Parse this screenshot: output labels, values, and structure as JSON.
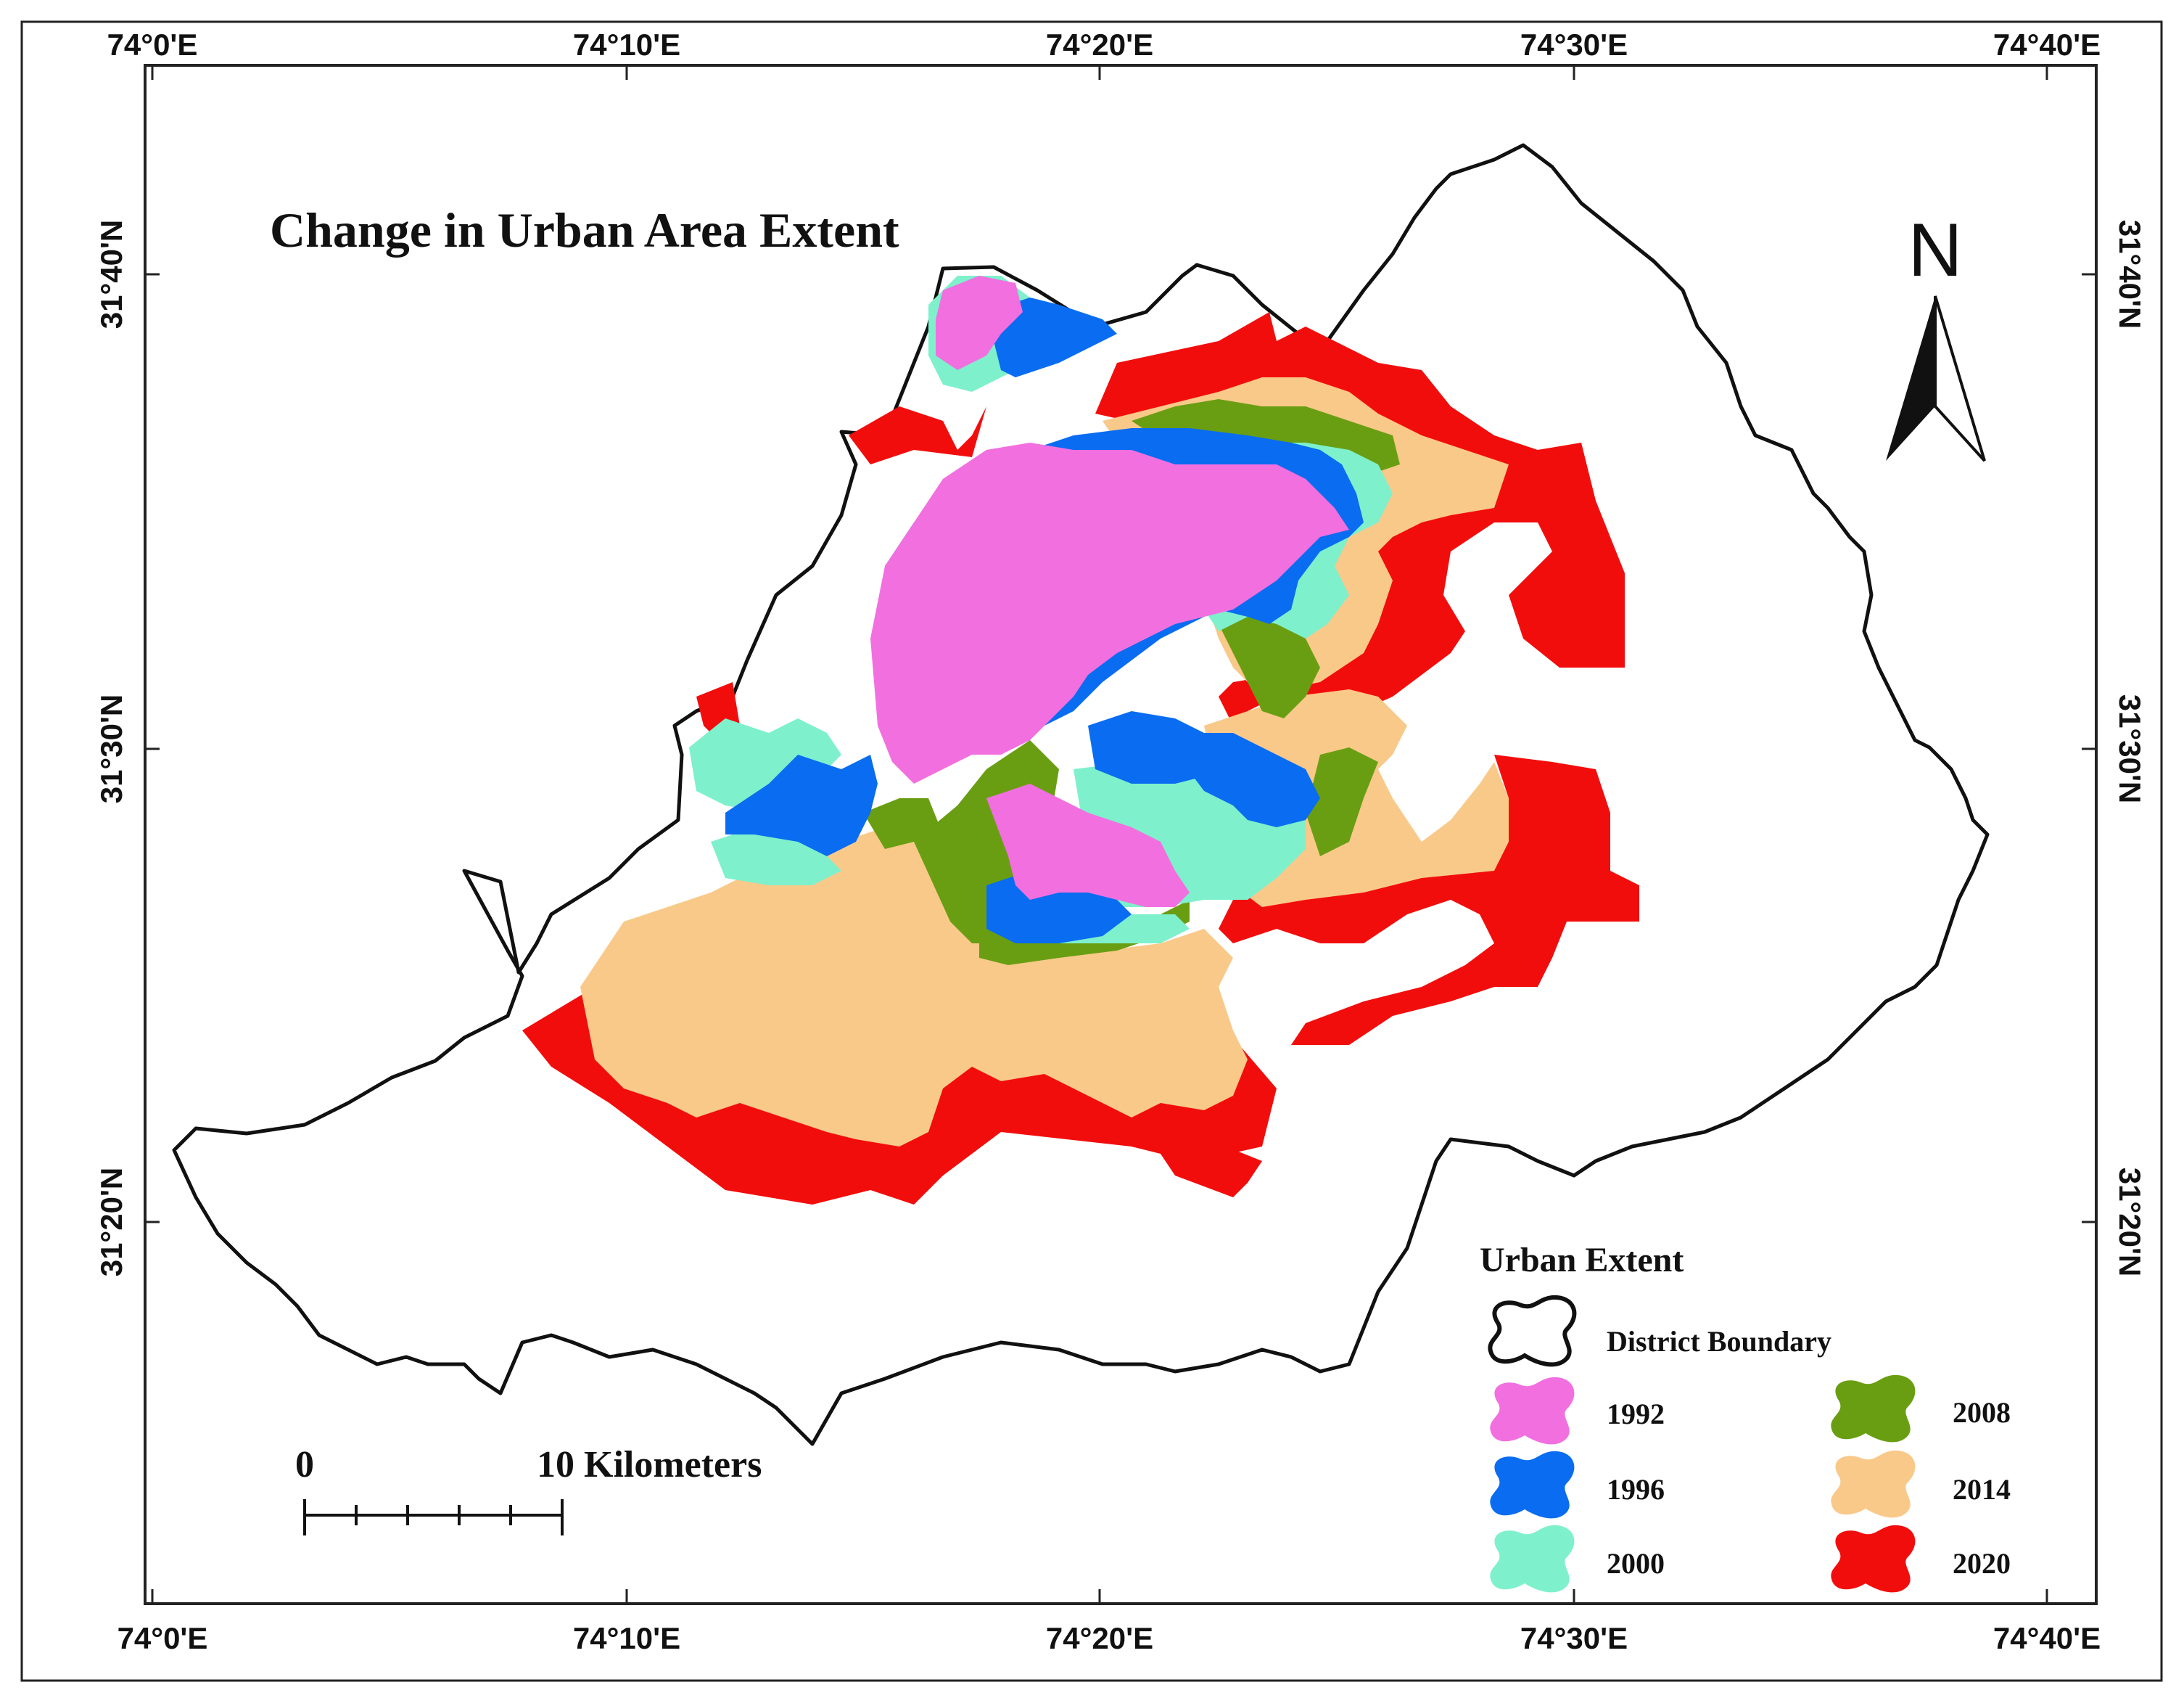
{
  "map": {
    "title": "Change in Urban Area Extent",
    "north_label": "N",
    "scale": {
      "start_label": "0",
      "end_label": "10 Kilometers"
    },
    "graticule": {
      "top": [
        "74°0'E",
        "74°10'E",
        "74°20'E",
        "74°30'E",
        "74°40'E"
      ],
      "bottom": [
        "74°0'E",
        "74°10'E",
        "74°20'E",
        "74°30'E",
        "74°40'E"
      ],
      "left": [
        "31°40'N",
        "31°30'N",
        "31°20'N"
      ],
      "right": [
        "31°40'N",
        "31°30'N",
        "31°20'N"
      ]
    },
    "legend": {
      "title": "Urban Extent",
      "boundary_label": "District Boundary",
      "items": [
        {
          "label": "1992",
          "color": "#f26fe0"
        },
        {
          "label": "1996",
          "color": "#0a6cf0"
        },
        {
          "label": "2000",
          "color": "#7ef0cc"
        },
        {
          "label": "2008",
          "color": "#6a9e12"
        },
        {
          "label": "2014",
          "color": "#f9c98a"
        },
        {
          "label": "2020",
          "color": "#f20d0d"
        }
      ]
    }
  }
}
